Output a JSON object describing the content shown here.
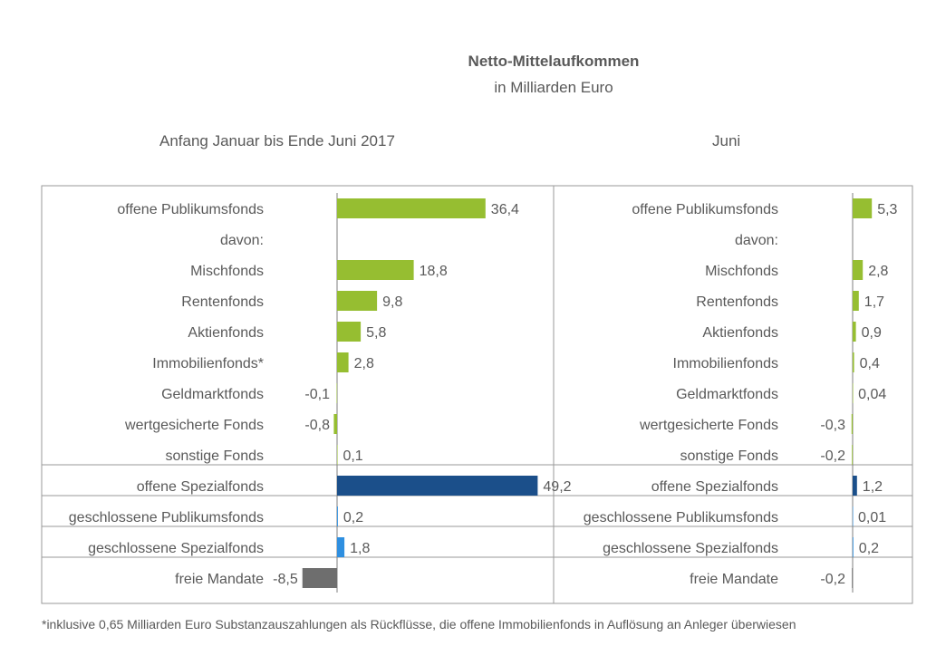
{
  "title": "Netto-Mittelaufkommen",
  "subtitle": "in Milliarden Euro",
  "footnote": "*inklusive 0,65 Milliarden Euro Substanzauszahlungen als Rückflüsse, die offene Immobilienfonds in Auflösung an Anleger überwiesen",
  "colors": {
    "green": "#96BE31",
    "dark_blue": "#1B4F8A",
    "light_blue": "#2E8FE0",
    "grey": "#6E6E6E",
    "border": "#9A9A9A"
  },
  "chart_data": [
    {
      "type": "bar",
      "orientation": "horizontal",
      "title": "Anfang Januar bis Ende Juni 2017",
      "categories": [
        "offene Publikumsfonds",
        "davon:",
        "Mischfonds",
        "Rentenfonds",
        "Aktienfonds",
        "Immobilienfonds*",
        "Geldmarktfonds",
        "wertgesicherte Fonds",
        "sonstige Fonds",
        "offene Spezialfonds",
        "geschlossene Publikumsfonds",
        "geschlossene Spezialfonds",
        "freie Mandate"
      ],
      "values": [
        36.4,
        null,
        18.8,
        9.8,
        5.8,
        2.8,
        -0.1,
        -0.8,
        0.1,
        49.2,
        0.2,
        1.8,
        -8.5
      ],
      "labels": [
        "36,4",
        "",
        "18,8",
        "9,8",
        "5,8",
        "2,8",
        "-0,1",
        "-0,8",
        "0,1",
        "49,2",
        "0,2",
        "1,8",
        "-8,5"
      ],
      "bar_colors": [
        "green",
        "",
        "green",
        "green",
        "green",
        "green",
        "green",
        "green",
        "green",
        "dark_blue",
        "light_blue",
        "light_blue",
        "grey"
      ]
    },
    {
      "type": "bar",
      "orientation": "horizontal",
      "title": "Juni",
      "categories": [
        "offene Publikumsfonds",
        "davon:",
        "Mischfonds",
        "Rentenfonds",
        "Aktienfonds",
        "Immobilienfonds",
        "Geldmarktfonds",
        "wertgesicherte Fonds",
        "sonstige Fonds",
        "offene Spezialfonds",
        "geschlossene Publikumsfonds",
        "geschlossene Spezialfonds",
        "freie Mandate"
      ],
      "values": [
        5.3,
        null,
        2.8,
        1.7,
        0.9,
        0.4,
        0.04,
        -0.3,
        -0.2,
        1.2,
        0.01,
        0.2,
        -0.2
      ],
      "labels": [
        "5,3",
        "",
        "2,8",
        "1,7",
        "0,9",
        "0,4",
        "0,04",
        "-0,3",
        "-0,2",
        "1,2",
        "0,01",
        "0,2",
        "-0,2"
      ],
      "bar_colors": [
        "green",
        "",
        "green",
        "green",
        "green",
        "green",
        "green",
        "green",
        "green",
        "dark_blue",
        "light_blue",
        "light_blue",
        "grey"
      ]
    }
  ]
}
